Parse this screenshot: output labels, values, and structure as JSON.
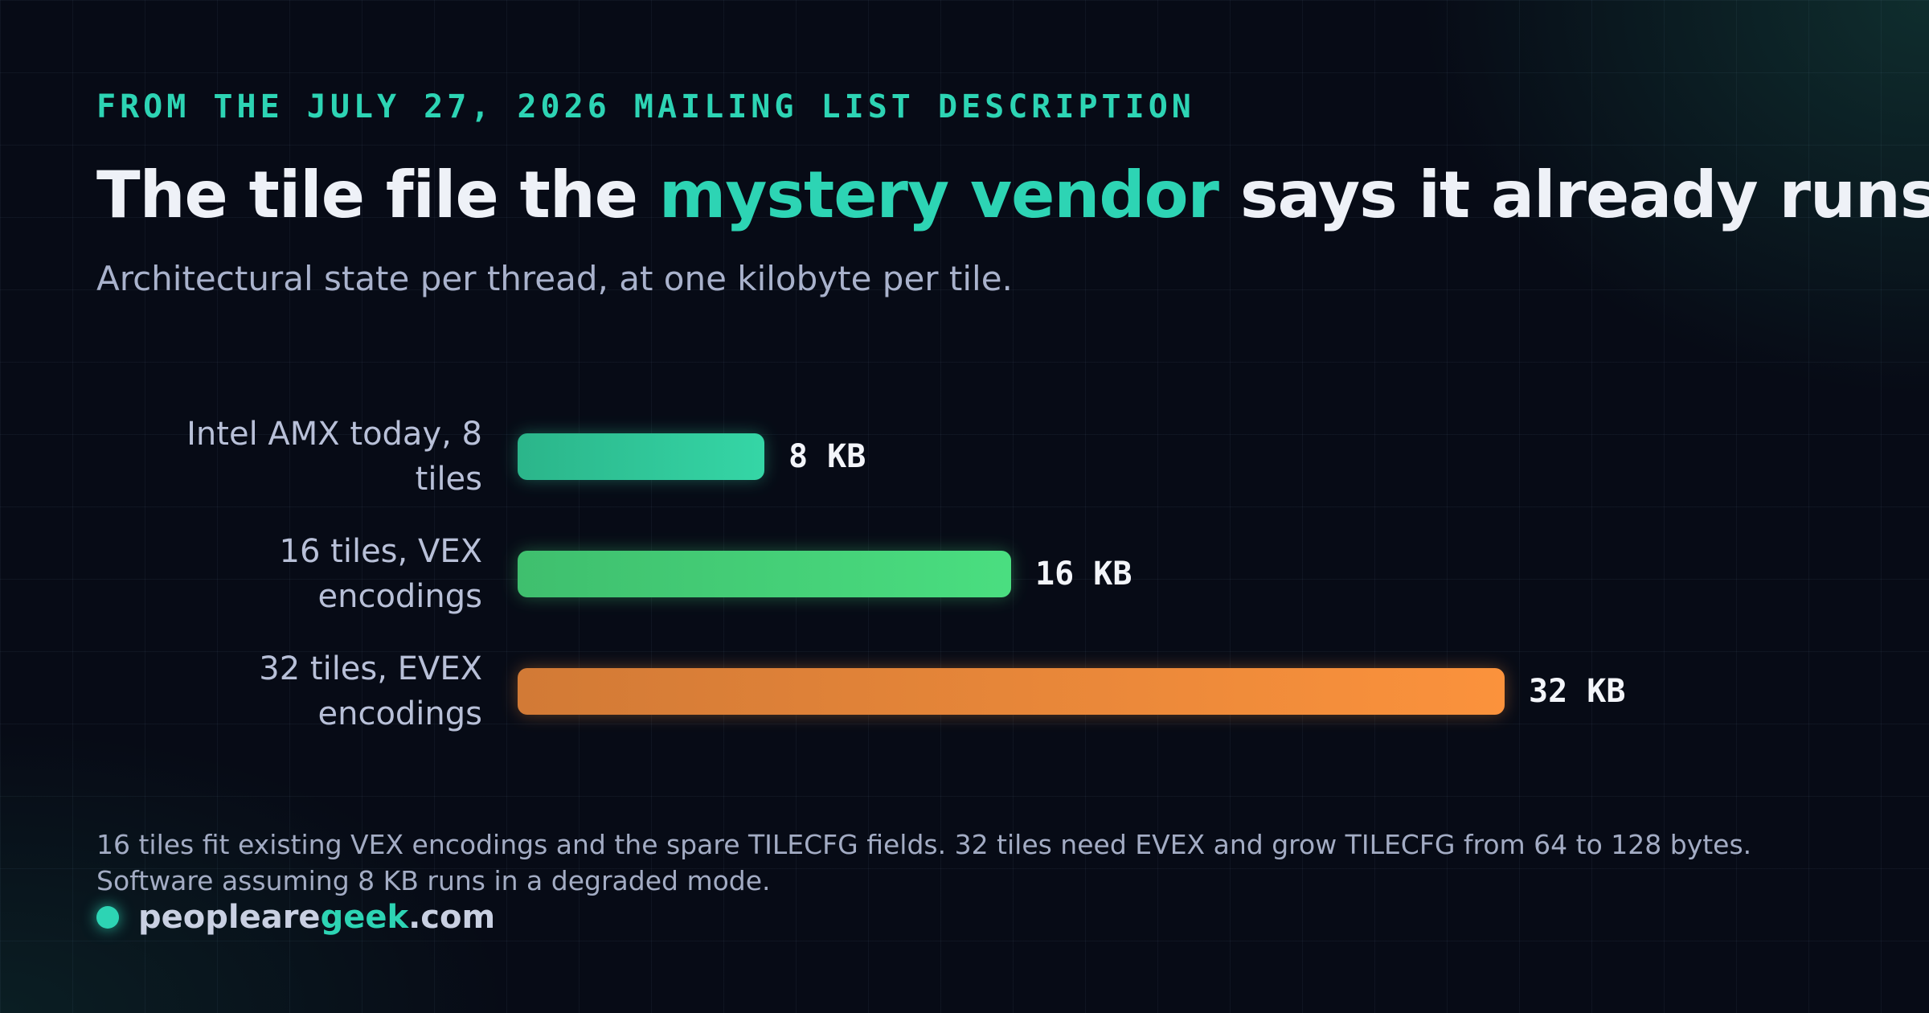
{
  "header": {
    "kicker": "FROM THE JULY 27, 2026 MAILING LIST DESCRIPTION",
    "title_before": "The tile file the ",
    "title_accent": "mystery vendor",
    "title_after": " says it already runs",
    "subtitle": "Architectural state per thread, at one kilobyte per tile."
  },
  "chart_data": {
    "type": "bar",
    "orientation": "horizontal",
    "categories": [
      [
        "Intel AMX today, 8",
        "tiles"
      ],
      [
        "16 tiles, VEX",
        "encodings"
      ],
      [
        "32 tiles, EVEX",
        "encodings"
      ]
    ],
    "values": [
      8,
      16,
      32
    ],
    "value_labels": [
      "8 KB",
      "16 KB",
      "32 KB"
    ],
    "unit": "KB",
    "xlim": [
      0,
      32
    ],
    "grid": false,
    "legend": "none",
    "colors": [
      [
        "#2bb58a",
        "#35d6a6"
      ],
      [
        "#3fbf6e",
        "#4ade80"
      ],
      [
        "#d27a36",
        "#fb923c"
      ]
    ]
  },
  "footer": {
    "note": "16 tiles fit existing VEX encodings and the spare TILECFG fields. 32 tiles need EVEX and grow TILECFG from 64 to 128 bytes. Software assuming 8 KB runs in a degraded mode.",
    "brand_before": "peopleare",
    "brand_accent": "geek",
    "brand_after": ".com",
    "brand_icon": "dot-icon",
    "accent_color": "#2dd4b4"
  }
}
